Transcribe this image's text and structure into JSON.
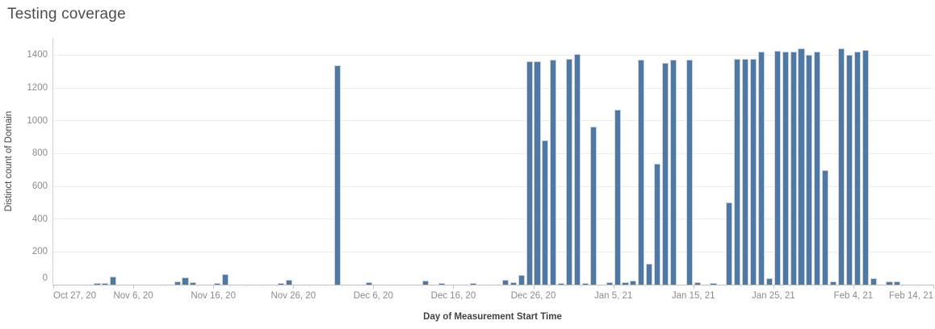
{
  "title": "Testing coverage",
  "colors": {
    "bar_fill": "#4e79a7",
    "bar_border": "#ccd2d9",
    "gridline": "#ededed",
    "axis_line": "#bfbfbf",
    "tick_label": "#8b8b8b",
    "axis_title": "#424242",
    "title_text": "#4e4e4e",
    "background": "#ffffff"
  },
  "y_axis": {
    "title": "Distinct count of Domain",
    "ticks": [
      0,
      200,
      400,
      600,
      800,
      1000,
      1200,
      1400
    ]
  },
  "x_axis": {
    "title": "Day of Measurement Start Time",
    "ticks": [
      {
        "day": 0,
        "label": "Oct 27, 20"
      },
      {
        "day": 10,
        "label": "Nov 6, 20"
      },
      {
        "day": 20,
        "label": "Nov 16, 20"
      },
      {
        "day": 30,
        "label": "Nov 26, 20"
      },
      {
        "day": 40,
        "label": "Dec 6, 20"
      },
      {
        "day": 50,
        "label": "Dec 16, 20"
      },
      {
        "day": 60,
        "label": "Dec 26, 20"
      },
      {
        "day": 70,
        "label": "Jan 5, 21"
      },
      {
        "day": 80,
        "label": "Jan 15, 21"
      },
      {
        "day": 90,
        "label": "Jan 25, 21"
      },
      {
        "day": 100,
        "label": "Feb 4, 21"
      },
      {
        "day": 110,
        "label": "Feb 14, 21"
      }
    ]
  },
  "chart_data": {
    "type": "bar",
    "title": "Testing coverage",
    "xlabel": "Day of Measurement Start Time",
    "ylabel": "Distinct count of Domain",
    "ylim": [
      0,
      1505
    ],
    "x_range_days": [
      0,
      110
    ],
    "x_epoch": "Oct 27, 20",
    "grid": "horizontal",
    "legend": "none",
    "points": [
      {
        "date": "Nov 1, 20",
        "day": 5,
        "value": 8
      },
      {
        "date": "Nov 2, 20",
        "day": 6,
        "value": 8
      },
      {
        "date": "Nov 3, 20",
        "day": 7,
        "value": 50
      },
      {
        "date": "Nov 11, 20",
        "day": 15,
        "value": 20
      },
      {
        "date": "Nov 12, 20",
        "day": 16,
        "value": 42
      },
      {
        "date": "Nov 13, 20",
        "day": 17,
        "value": 17
      },
      {
        "date": "Nov 16, 20",
        "day": 20,
        "value": 8
      },
      {
        "date": "Nov 17, 20",
        "day": 21,
        "value": 65
      },
      {
        "date": "Nov 24, 20",
        "day": 28,
        "value": 12
      },
      {
        "date": "Nov 25, 20",
        "day": 29,
        "value": 28
      },
      {
        "date": "Dec 1, 20",
        "day": 35,
        "value": 1340
      },
      {
        "date": "Dec 5, 20",
        "day": 39,
        "value": 15
      },
      {
        "date": "Dec 12, 20",
        "day": 46,
        "value": 25
      },
      {
        "date": "Dec 14, 20",
        "day": 48,
        "value": 8
      },
      {
        "date": "Dec 18, 20",
        "day": 52,
        "value": 8
      },
      {
        "date": "Dec 22, 20",
        "day": 56,
        "value": 28
      },
      {
        "date": "Dec 23, 20",
        "day": 57,
        "value": 15
      },
      {
        "date": "Dec 24, 20",
        "day": 58,
        "value": 60
      },
      {
        "date": "Dec 25, 20",
        "day": 59,
        "value": 1360
      },
      {
        "date": "Dec 26, 20",
        "day": 60,
        "value": 1360
      },
      {
        "date": "Dec 27, 20",
        "day": 61,
        "value": 880
      },
      {
        "date": "Dec 28, 20",
        "day": 62,
        "value": 1370
      },
      {
        "date": "Dec 29, 20",
        "day": 63,
        "value": 10
      },
      {
        "date": "Dec 30, 20",
        "day": 64,
        "value": 1375
      },
      {
        "date": "Dec 31, 20",
        "day": 65,
        "value": 1405
      },
      {
        "date": "Jan 1, 21",
        "day": 66,
        "value": 12
      },
      {
        "date": "Jan 2, 21",
        "day": 67,
        "value": 965
      },
      {
        "date": "Jan 4, 21",
        "day": 69,
        "value": 13
      },
      {
        "date": "Jan 5, 21",
        "day": 70,
        "value": 1065
      },
      {
        "date": "Jan 6, 21",
        "day": 71,
        "value": 15
      },
      {
        "date": "Jan 7, 21",
        "day": 72,
        "value": 25
      },
      {
        "date": "Jan 8, 21",
        "day": 73,
        "value": 1370
      },
      {
        "date": "Jan 9, 21",
        "day": 74,
        "value": 130
      },
      {
        "date": "Jan 10, 21",
        "day": 75,
        "value": 740
      },
      {
        "date": "Jan 11, 21",
        "day": 76,
        "value": 1355
      },
      {
        "date": "Jan 12, 21",
        "day": 77,
        "value": 1370
      },
      {
        "date": "Jan 14, 21",
        "day": 79,
        "value": 1370
      },
      {
        "date": "Jan 15, 21",
        "day": 80,
        "value": 15
      },
      {
        "date": "Jan 17, 21",
        "day": 82,
        "value": 5
      },
      {
        "date": "Jan 19, 21",
        "day": 84,
        "value": 500
      },
      {
        "date": "Jan 20, 21",
        "day": 85,
        "value": 1375
      },
      {
        "date": "Jan 21, 21",
        "day": 86,
        "value": 1375
      },
      {
        "date": "Jan 22, 21",
        "day": 87,
        "value": 1375
      },
      {
        "date": "Jan 23, 21",
        "day": 88,
        "value": 1420
      },
      {
        "date": "Jan 24, 21",
        "day": 89,
        "value": 38
      },
      {
        "date": "Jan 25, 21",
        "day": 90,
        "value": 1425
      },
      {
        "date": "Jan 26, 21",
        "day": 91,
        "value": 1420
      },
      {
        "date": "Jan 27, 21",
        "day": 92,
        "value": 1420
      },
      {
        "date": "Jan 28, 21",
        "day": 93,
        "value": 1440
      },
      {
        "date": "Jan 29, 21",
        "day": 94,
        "value": 1400
      },
      {
        "date": "Jan 30, 21",
        "day": 95,
        "value": 1420
      },
      {
        "date": "Jan 31, 21",
        "day": 96,
        "value": 700
      },
      {
        "date": "Feb 1, 21",
        "day": 97,
        "value": 20
      },
      {
        "date": "Feb 2, 21",
        "day": 98,
        "value": 1440
      },
      {
        "date": "Feb 3, 21",
        "day": 99,
        "value": 1400
      },
      {
        "date": "Feb 4, 21",
        "day": 100,
        "value": 1420
      },
      {
        "date": "Feb 5, 21",
        "day": 101,
        "value": 1430
      },
      {
        "date": "Feb 6, 21",
        "day": 102,
        "value": 38
      },
      {
        "date": "Feb 8, 21",
        "day": 104,
        "value": 20
      },
      {
        "date": "Feb 9, 21",
        "day": 105,
        "value": 20
      }
    ]
  }
}
